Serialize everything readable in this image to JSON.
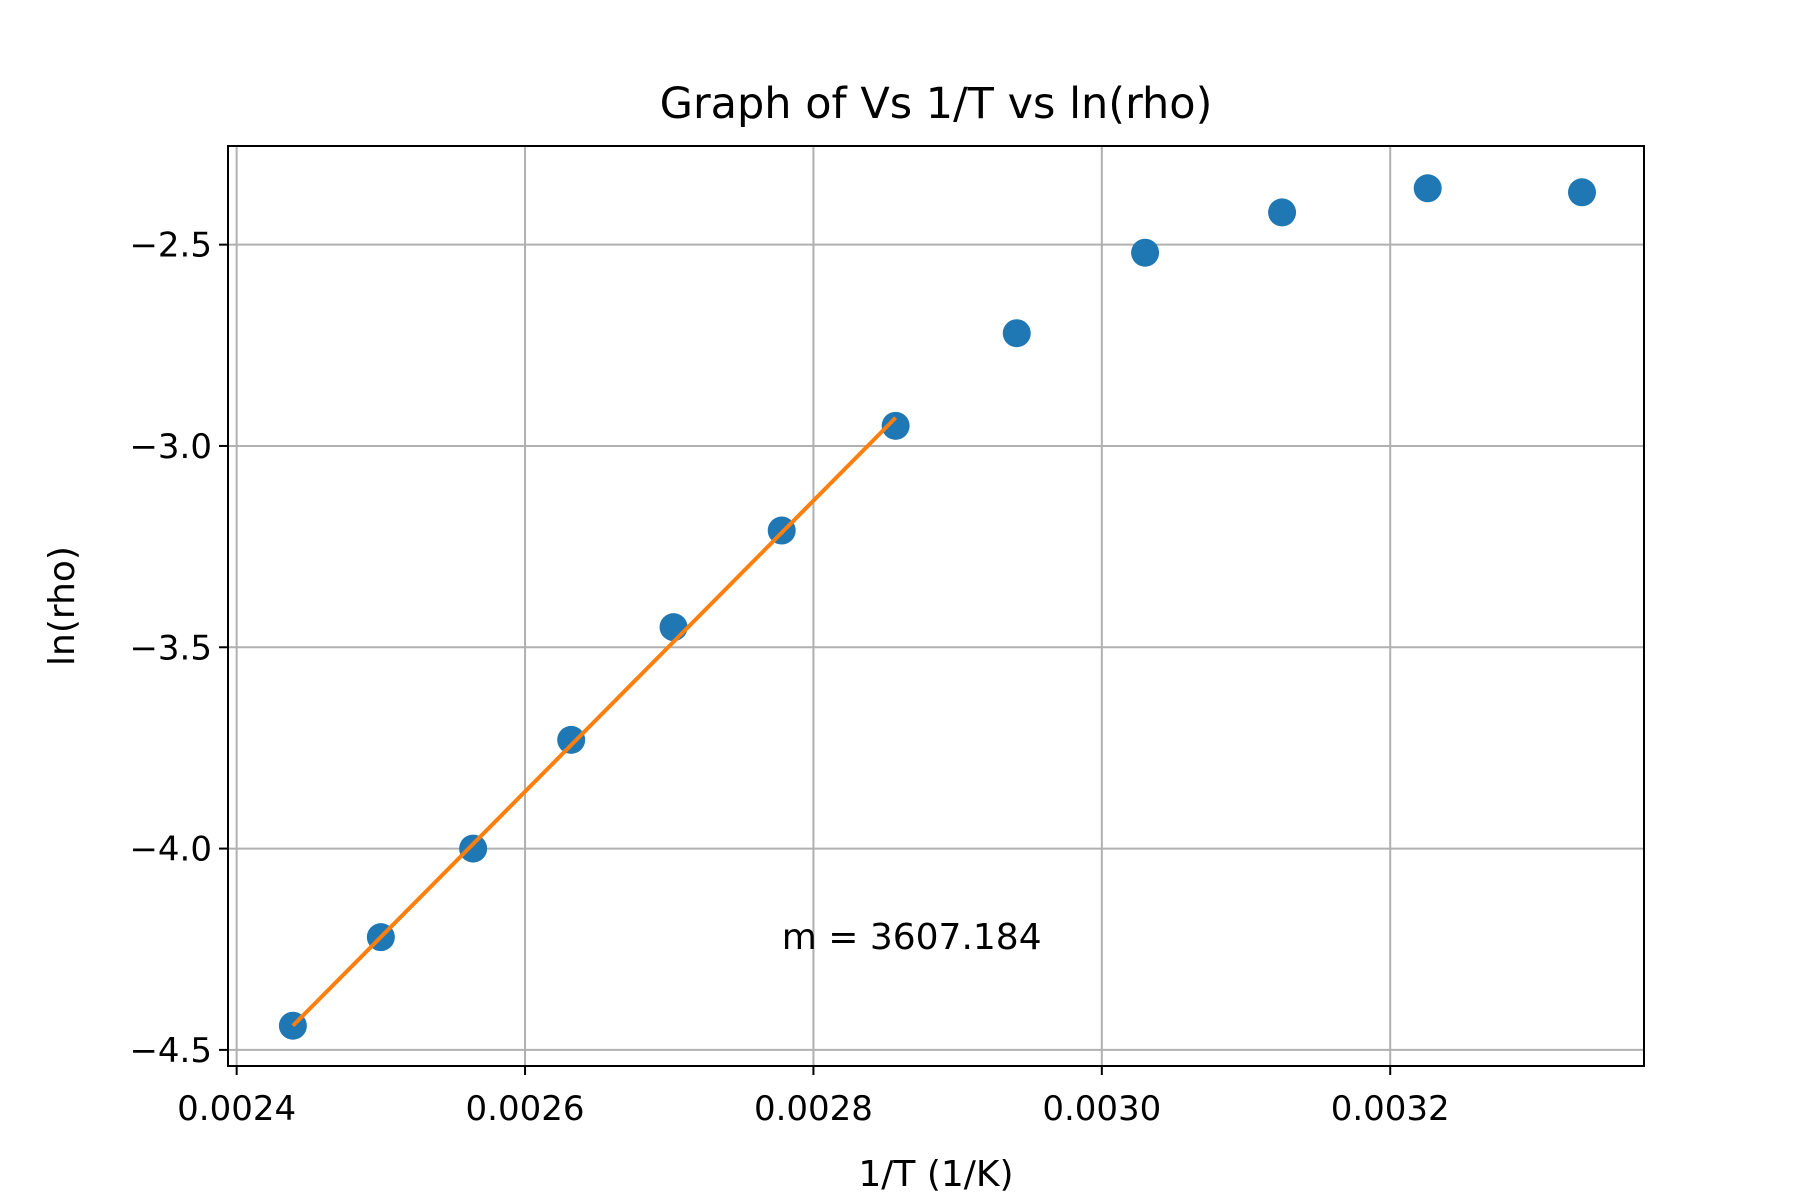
{
  "chart_data": {
    "type": "scatter",
    "title": "Graph of Vs 1/T vs ln(rho)",
    "xlabel": "1/T (1/K)",
    "ylabel": "ln(rho)",
    "xlim": [
      0.002394,
      0.003376
    ],
    "ylim": [
      -4.54,
      -2.255
    ],
    "grid": true,
    "xticks": [
      {
        "value": 0.0024,
        "label": "0.0024"
      },
      {
        "value": 0.0026,
        "label": "0.0026"
      },
      {
        "value": 0.0028,
        "label": "0.0028"
      },
      {
        "value": 0.003,
        "label": "0.0030"
      },
      {
        "value": 0.0032,
        "label": "0.0032"
      }
    ],
    "yticks": [
      {
        "value": -2.5,
        "label": "−2.5"
      },
      {
        "value": -3.0,
        "label": "−3.0"
      },
      {
        "value": -3.5,
        "label": "−3.5"
      },
      {
        "value": -4.0,
        "label": "−4.0"
      },
      {
        "value": -4.5,
        "label": "−4.5"
      }
    ],
    "series": [
      {
        "kind": "scatter",
        "color": "#1f77b4",
        "x": [
          0.002439,
          0.0025,
          0.002564,
          0.002632,
          0.002703,
          0.002778,
          0.002857,
          0.002941,
          0.00303,
          0.003125,
          0.003226,
          0.003333
        ],
        "y": [
          -4.44,
          -4.22,
          -4.0,
          -3.73,
          -3.45,
          -3.21,
          -2.95,
          -2.72,
          -2.52,
          -2.42,
          -2.36,
          -2.37
        ]
      },
      {
        "kind": "line",
        "color": "#ff7f0e",
        "x": [
          0.002439,
          0.002857
        ],
        "y": [
          -4.44,
          -2.93
        ]
      }
    ],
    "annotations": [
      {
        "text": "m = 3607.184",
        "x": 0.002778,
        "y": -4.22
      }
    ]
  }
}
